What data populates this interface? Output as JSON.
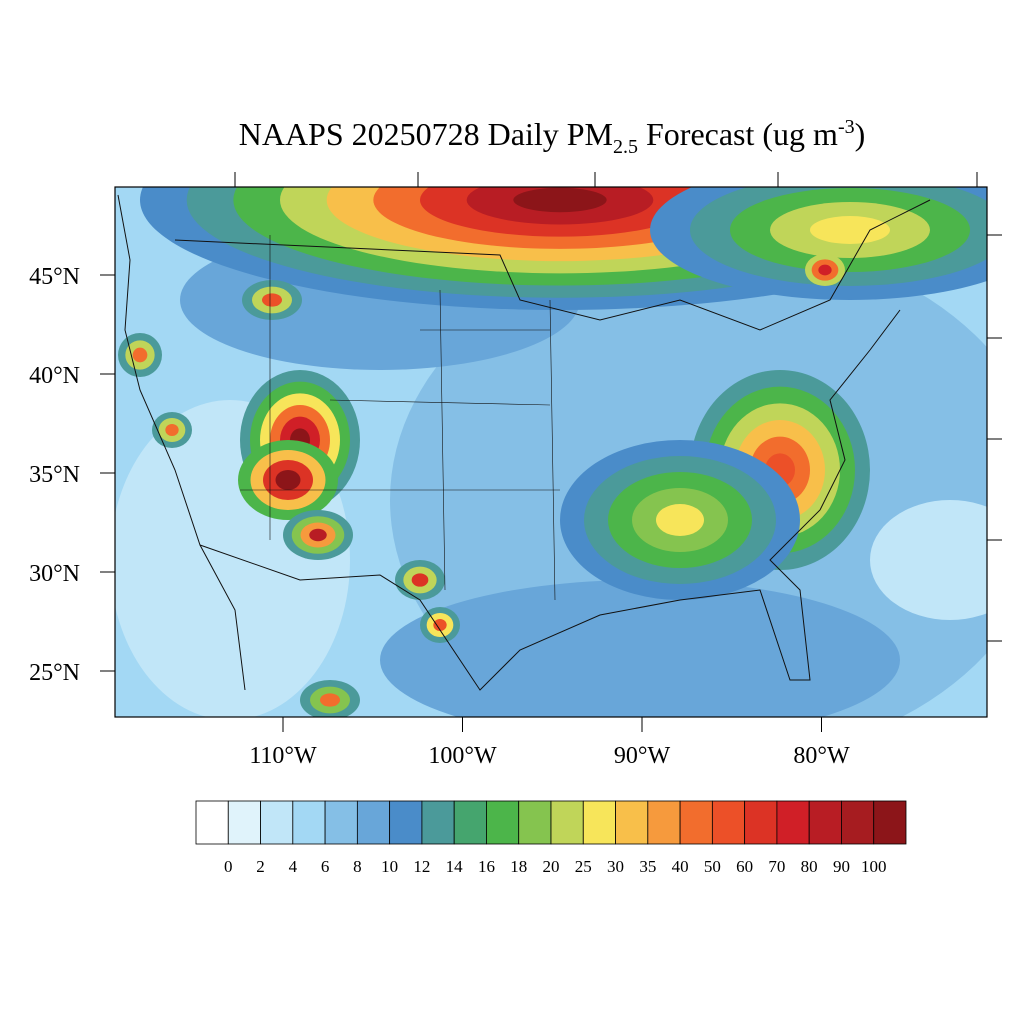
{
  "title": {
    "main": "NAAPS 20250728 Daily PM",
    "subscript": "2.5",
    "middle": " Forecast (ug m",
    "superscript": "-3",
    "end": ")"
  },
  "lat_ticks": [
    {
      "value": 45,
      "label": "45°N"
    },
    {
      "value": 40,
      "label": "40°N"
    },
    {
      "value": 35,
      "label": "35°N"
    },
    {
      "value": 30,
      "label": "30°N"
    },
    {
      "value": 25,
      "label": "25°N"
    }
  ],
  "lon_ticks": [
    {
      "value": -110,
      "label": "110°W"
    },
    {
      "value": -100,
      "label": "100°W"
    },
    {
      "value": -90,
      "label": "90°W"
    },
    {
      "value": -80,
      "label": "80°W"
    }
  ],
  "colorbar": {
    "levels": [
      0,
      2,
      4,
      6,
      8,
      10,
      12,
      14,
      16,
      18,
      20,
      25,
      30,
      35,
      40,
      50,
      60,
      70,
      80,
      90,
      100
    ],
    "colors": [
      "#ffffff",
      "#e0f3fb",
      "#c1e6f8",
      "#a3d8f4",
      "#85bfe6",
      "#68a6d9",
      "#4a8cc9",
      "#4b9a9a",
      "#45a56e",
      "#4cb54a",
      "#85c44f",
      "#c0d559",
      "#f7e55a",
      "#f8bf4a",
      "#f69a3d",
      "#f26d2d",
      "#ec5028",
      "#dc3325",
      "#d01f27",
      "#b81d24",
      "#a61c20",
      "#8c1519"
    ]
  }
}
